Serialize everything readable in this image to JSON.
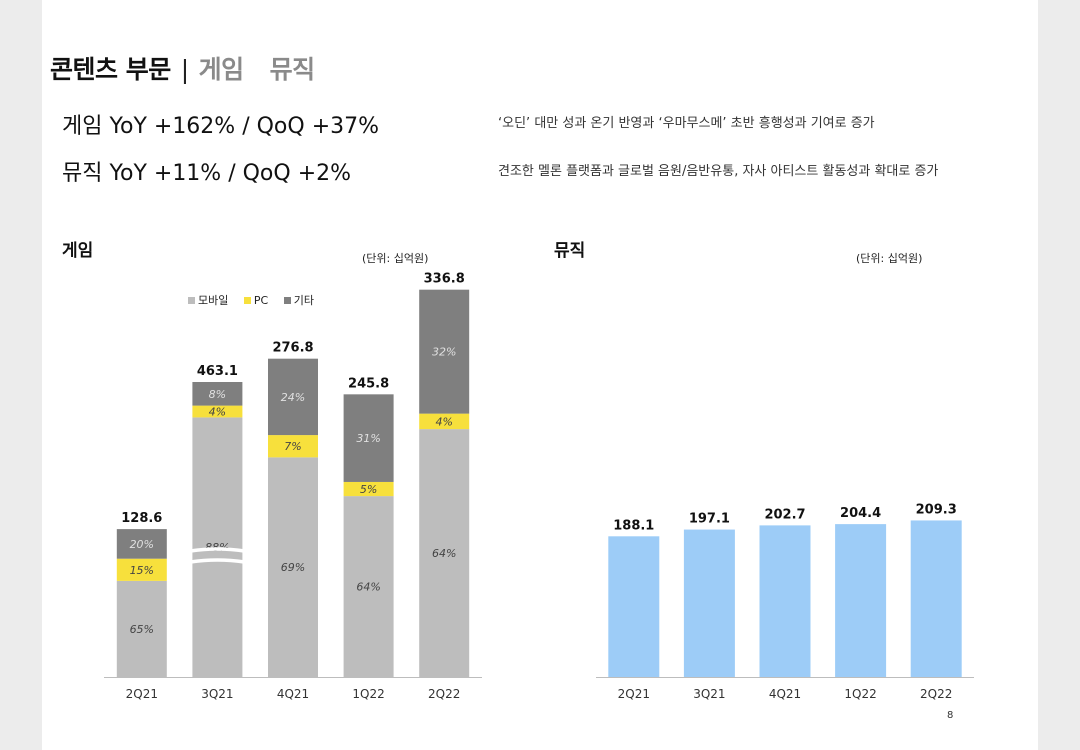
{
  "header": {
    "title_main": "콘텐츠 부문",
    "separator": "|",
    "title_sub1": "게임",
    "title_sub2": "뮤직"
  },
  "summary": [
    {
      "text": "게임  YoY +162% / QoQ +37%",
      "note": "‘오딘’ 대만 성과 온기 반영과 ‘우마무스메’ 초반 흥행성과 기여로 증가"
    },
    {
      "text": "뮤직  YoY +11% / QoQ +2%",
      "note": "견조한 멜론 플랫폼과 글로벌 음원/음반유통, 자사 아티스트 활동성과 확대로 증가"
    }
  ],
  "colors": {
    "mobile": "#bdbdbd",
    "pc": "#f7e03c",
    "other": "#7f7f7f",
    "music": "#9dccf7"
  },
  "page_number": "8",
  "chart_data": [
    {
      "type": "bar",
      "stacked": true,
      "title": "게임",
      "unit": "(단위: 십억원)",
      "categories": [
        "2Q21",
        "3Q21",
        "4Q21",
        "1Q22",
        "2Q22"
      ],
      "totals": [
        128.6,
        463.1,
        276.8,
        245.8,
        336.8
      ],
      "total_labels": [
        "128.6",
        "463.1",
        "276.8",
        "245.8",
        "336.8"
      ],
      "axis_break": "3Q21",
      "legend_position": "top",
      "series": [
        {
          "name": "모바일",
          "share": [
            65,
            88,
            69,
            64,
            64
          ],
          "labels": [
            "65%",
            "88%",
            "69%",
            "64%",
            "64%"
          ]
        },
        {
          "name": "PC",
          "share": [
            15,
            4,
            7,
            5,
            4
          ],
          "labels": [
            "15%",
            "4%",
            "7%",
            "5%",
            "4%"
          ]
        },
        {
          "name": "기타",
          "share": [
            20,
            8,
            24,
            31,
            32
          ],
          "labels": [
            "20%",
            "8%",
            "24%",
            "31%",
            "32%"
          ]
        }
      ]
    },
    {
      "type": "bar",
      "title": "뮤직",
      "unit": "(단위: 십억원)",
      "categories": [
        "2Q21",
        "3Q21",
        "4Q21",
        "1Q22",
        "2Q22"
      ],
      "values": [
        188.1,
        197.1,
        202.7,
        204.4,
        209.3
      ],
      "value_labels": [
        "188.1",
        "197.1",
        "202.7",
        "204.4",
        "209.3"
      ]
    }
  ]
}
